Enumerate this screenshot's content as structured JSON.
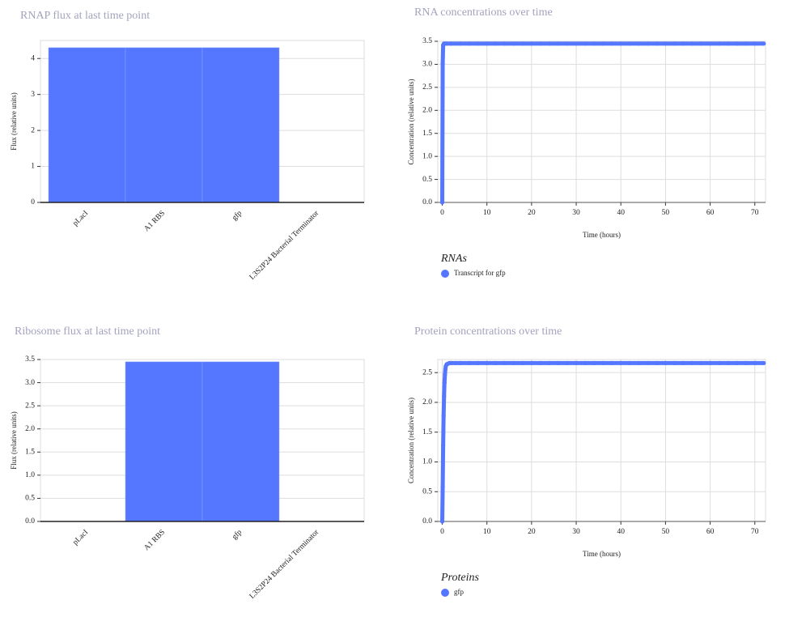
{
  "chart_data": [
    {
      "type": "bar",
      "title": "RNAP flux at last time point",
      "y_label": "Flux (relative units)",
      "categories": [
        "pLacI",
        "A1 RBS",
        "gfp",
        "L3S2P24 Bacterial Terminator"
      ],
      "values": [
        4.3,
        4.3,
        4.3,
        0
      ],
      "color": "#5577ff",
      "ylim": [
        0,
        4.5
      ],
      "yticks": [
        0,
        1,
        2,
        3,
        4
      ],
      "grid": true
    },
    {
      "type": "line",
      "title": "RNA concentrations over time",
      "x_label": "Time (hours)",
      "y_label": "Concentration (relative units)",
      "legend_title": "RNAs",
      "series": [
        {
          "name": "Transcript for gfp",
          "color": "#5577ff",
          "x": [
            0,
            0.1,
            0.2,
            0.4,
            0.7,
            1,
            2,
            4,
            6,
            8,
            10,
            12,
            14,
            16,
            18,
            20,
            22,
            24,
            26,
            28,
            30,
            32,
            34,
            36,
            38,
            40,
            42,
            44,
            46,
            48,
            50,
            52,
            54,
            56,
            58,
            60,
            62,
            64,
            66,
            68,
            70,
            72
          ],
          "values": [
            0,
            3.02,
            3.42,
            3.45,
            3.45,
            3.45,
            3.45,
            3.45,
            3.45,
            3.45,
            3.45,
            3.45,
            3.45,
            3.45,
            3.45,
            3.45,
            3.45,
            3.45,
            3.45,
            3.45,
            3.45,
            3.45,
            3.45,
            3.45,
            3.45,
            3.45,
            3.45,
            3.45,
            3.45,
            3.45,
            3.45,
            3.45,
            3.45,
            3.45,
            3.45,
            3.45,
            3.45,
            3.45,
            3.45,
            3.45,
            3.45,
            3.45
          ]
        }
      ],
      "xlim": [
        -1,
        72.4
      ],
      "xticks": [
        0,
        10,
        20,
        30,
        40,
        50,
        60,
        70
      ],
      "ylim": [
        0,
        3.5
      ],
      "yticks": [
        {
          "value": 0,
          "label": "0.0"
        },
        {
          "value": 0.5,
          "label": "0.5"
        },
        {
          "value": 1,
          "label": "1.0"
        },
        {
          "value": 1.5,
          "label": "1.5"
        },
        {
          "value": 2,
          "label": "2.0"
        },
        {
          "value": 2.5,
          "label": "2.5"
        },
        {
          "value": 3,
          "label": "3.0"
        },
        {
          "value": 3.5,
          "label": "3.5"
        }
      ],
      "grid": true
    },
    {
      "type": "bar",
      "title": "Ribosome flux at last time point",
      "y_label": "Flux (relative units)",
      "categories": [
        "pLacI",
        "A1 RBS",
        "gfp",
        "L3S2P24 Bacterial Terminator"
      ],
      "values": [
        0,
        3.45,
        3.45,
        0
      ],
      "color": "#5577ff",
      "ylim": [
        0,
        3.5
      ],
      "yticks": [
        {
          "value": 0,
          "label": "0.0"
        },
        {
          "value": 0.5,
          "label": "0.5"
        },
        {
          "value": 1,
          "label": "1.0"
        },
        {
          "value": 1.5,
          "label": "1.5"
        },
        {
          "value": 2,
          "label": "2.0"
        },
        {
          "value": 2.5,
          "label": "2.5"
        },
        {
          "value": 3,
          "label": "3.0"
        },
        {
          "value": 3.5,
          "label": "3.5"
        }
      ],
      "grid": true
    },
    {
      "type": "line",
      "title": "Protein concentrations over time",
      "x_label": "Time (hours)",
      "y_label": "Concentration (relative units)",
      "legend_title": "Proteins",
      "series": [
        {
          "name": "gfp",
          "color": "#5577ff",
          "x": [
            0,
            0.1,
            0.2,
            0.3,
            0.4,
            0.5,
            0.6,
            0.7,
            0.8,
            1,
            1.3,
            1.6,
            2,
            3,
            4,
            6,
            8,
            10,
            12,
            14,
            16,
            18,
            20,
            22,
            24,
            26,
            28,
            30,
            32,
            34,
            36,
            38,
            40,
            42,
            44,
            46,
            48,
            50,
            52,
            54,
            56,
            58,
            60,
            62,
            64,
            66,
            68,
            70,
            72
          ],
          "values": [
            0,
            0.58,
            1.28,
            1.78,
            2.1,
            2.33,
            2.47,
            2.56,
            2.61,
            2.64,
            2.65,
            2.66,
            2.66,
            2.66,
            2.66,
            2.66,
            2.66,
            2.66,
            2.66,
            2.66,
            2.66,
            2.66,
            2.66,
            2.66,
            2.66,
            2.66,
            2.66,
            2.66,
            2.66,
            2.66,
            2.66,
            2.66,
            2.66,
            2.66,
            2.66,
            2.66,
            2.66,
            2.66,
            2.66,
            2.66,
            2.66,
            2.66,
            2.66,
            2.66,
            2.66,
            2.66,
            2.66,
            2.66,
            2.66
          ]
        }
      ],
      "xlim": [
        -1,
        72.4
      ],
      "xticks": [
        0,
        10,
        20,
        30,
        40,
        50,
        60,
        70
      ],
      "ylim": [
        0,
        2.72
      ],
      "yticks": [
        {
          "value": 0,
          "label": "0.0"
        },
        {
          "value": 0.5,
          "label": "0.5"
        },
        {
          "value": 1,
          "label": "1.0"
        },
        {
          "value": 1.5,
          "label": "1.5"
        },
        {
          "value": 2,
          "label": "2.0"
        },
        {
          "value": 2.5,
          "label": "2.5"
        }
      ],
      "grid": true
    }
  ]
}
